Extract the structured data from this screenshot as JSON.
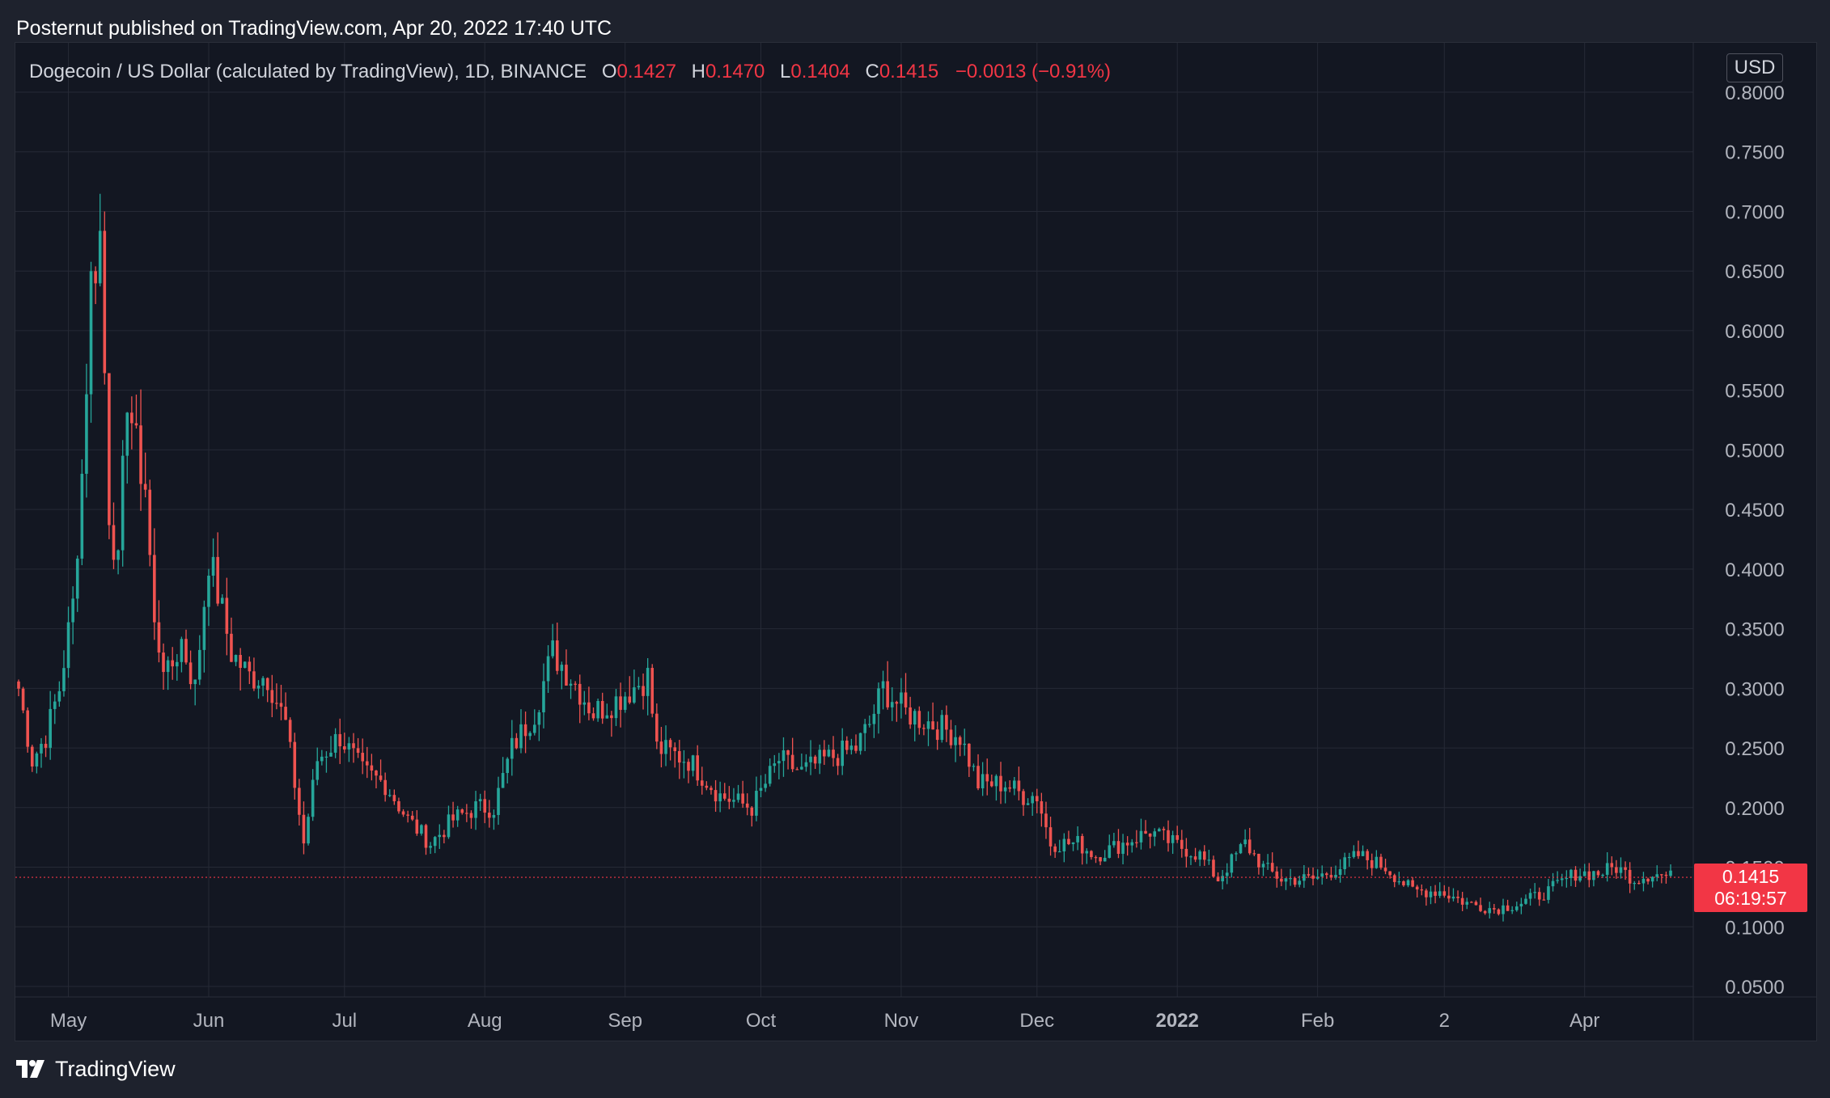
{
  "header": {
    "title": "Posternut published on TradingView.com, Apr 20, 2022 17:40 UTC"
  },
  "legend": {
    "symbol": "Dogecoin / US Dollar (calculated by TradingView), 1D, BINANCE",
    "o_label": "O",
    "o_value": "0.1427",
    "h_label": "H",
    "h_value": "0.1470",
    "l_label": "L",
    "l_value": "0.1404",
    "c_label": "C",
    "c_value": "0.1415",
    "change": "−0.0013 (−0.91%)"
  },
  "currency_button": "USD",
  "last_price": {
    "price": "0.1415",
    "countdown": "06:19:57"
  },
  "footer": {
    "brand": "TradingView",
    "logo_icon": "tradingview-logo-icon"
  },
  "colors": {
    "up": "#26a69a",
    "down": "#ef5350",
    "background": "#131722",
    "grid": "#262a36",
    "axis_text": "#b2b5be",
    "last_price": "#f23645"
  },
  "chart_data": {
    "type": "candlestick",
    "title": "",
    "xlabel": "",
    "ylabel": "",
    "ylim": [
      0.05,
      0.8
    ],
    "y_ticks": [
      "0.8000",
      "0.7500",
      "0.7000",
      "0.6500",
      "0.6000",
      "0.5500",
      "0.5000",
      "0.4500",
      "0.4000",
      "0.3500",
      "0.3000",
      "0.2500",
      "0.2000",
      "0.1500",
      "0.1000",
      "0.0500"
    ],
    "x_tick_labels": [
      {
        "label": "May",
        "date": "2021-05-01",
        "bold": false
      },
      {
        "label": "Jun",
        "date": "2021-06-01",
        "bold": false
      },
      {
        "label": "Jul",
        "date": "2021-07-01",
        "bold": false
      },
      {
        "label": "Aug",
        "date": "2021-08-01",
        "bold": false
      },
      {
        "label": "Sep",
        "date": "2021-09-01",
        "bold": false
      },
      {
        "label": "Oct",
        "date": "2021-10-01",
        "bold": false
      },
      {
        "label": "Nov",
        "date": "2021-11-01",
        "bold": false
      },
      {
        "label": "Dec",
        "date": "2021-12-01",
        "bold": false
      },
      {
        "label": "2022",
        "date": "2022-01-01",
        "bold": true
      },
      {
        "label": "Feb",
        "date": "2022-02-01",
        "bold": false
      },
      {
        "label": "2",
        "date": "2022-03-01",
        "bold": false
      },
      {
        "label": "Apr",
        "date": "2022-04-01",
        "bold": false
      }
    ],
    "x_range": [
      "2021-04-20",
      "2022-04-20"
    ],
    "last_price": 0.1415,
    "grid": true,
    "path_points": [
      [
        "2021-04-20",
        0.3
      ],
      [
        "2021-04-23",
        0.24
      ],
      [
        "2021-04-26",
        0.26
      ],
      [
        "2021-04-29",
        0.3
      ],
      [
        "2021-05-02",
        0.37
      ],
      [
        "2021-05-04",
        0.48
      ],
      [
        "2021-05-06",
        0.64
      ],
      [
        "2021-05-08",
        0.68
      ],
      [
        "2021-05-10",
        0.45
      ],
      [
        "2021-05-12",
        0.4
      ],
      [
        "2021-05-14",
        0.55
      ],
      [
        "2021-05-16",
        0.5
      ],
      [
        "2021-05-18",
        0.47
      ],
      [
        "2021-05-20",
        0.35
      ],
      [
        "2021-05-23",
        0.31
      ],
      [
        "2021-05-26",
        0.34
      ],
      [
        "2021-05-29",
        0.3
      ],
      [
        "2021-06-01",
        0.41
      ],
      [
        "2021-06-03",
        0.38
      ],
      [
        "2021-06-06",
        0.33
      ],
      [
        "2021-06-10",
        0.31
      ],
      [
        "2021-06-14",
        0.31
      ],
      [
        "2021-06-18",
        0.27
      ],
      [
        "2021-06-22",
        0.17
      ],
      [
        "2021-06-25",
        0.24
      ],
      [
        "2021-06-30",
        0.26
      ],
      [
        "2021-07-05",
        0.23
      ],
      [
        "2021-07-10",
        0.22
      ],
      [
        "2021-07-15",
        0.19
      ],
      [
        "2021-07-20",
        0.17
      ],
      [
        "2021-07-25",
        0.19
      ],
      [
        "2021-07-30",
        0.2
      ],
      [
        "2021-08-03",
        0.2
      ],
      [
        "2021-08-07",
        0.25
      ],
      [
        "2021-08-12",
        0.28
      ],
      [
        "2021-08-16",
        0.33
      ],
      [
        "2021-08-20",
        0.31
      ],
      [
        "2021-08-25",
        0.28
      ],
      [
        "2021-08-30",
        0.29
      ],
      [
        "2021-09-06",
        0.31
      ],
      [
        "2021-09-08",
        0.25
      ],
      [
        "2021-09-15",
        0.24
      ],
      [
        "2021-09-22",
        0.21
      ],
      [
        "2021-09-29",
        0.2
      ],
      [
        "2021-10-05",
        0.24
      ],
      [
        "2021-10-10",
        0.23
      ],
      [
        "2021-10-15",
        0.24
      ],
      [
        "2021-10-22",
        0.25
      ],
      [
        "2021-10-25",
        0.27
      ],
      [
        "2021-10-28",
        0.3
      ],
      [
        "2021-11-02",
        0.28
      ],
      [
        "2021-11-08",
        0.27
      ],
      [
        "2021-11-14",
        0.26
      ],
      [
        "2021-11-18",
        0.22
      ],
      [
        "2021-11-24",
        0.22
      ],
      [
        "2021-11-28",
        0.21
      ],
      [
        "2021-12-01",
        0.21
      ],
      [
        "2021-12-04",
        0.17
      ],
      [
        "2021-12-10",
        0.17
      ],
      [
        "2021-12-14",
        0.16
      ],
      [
        "2021-12-20",
        0.17
      ],
      [
        "2021-12-26",
        0.18
      ],
      [
        "2021-12-31",
        0.17
      ],
      [
        "2022-01-06",
        0.16
      ],
      [
        "2022-01-10",
        0.14
      ],
      [
        "2022-01-16",
        0.17
      ],
      [
        "2022-01-20",
        0.15
      ],
      [
        "2022-01-24",
        0.14
      ],
      [
        "2022-01-31",
        0.14
      ],
      [
        "2022-02-06",
        0.15
      ],
      [
        "2022-02-10",
        0.16
      ],
      [
        "2022-02-16",
        0.15
      ],
      [
        "2022-02-22",
        0.13
      ],
      [
        "2022-02-28",
        0.13
      ],
      [
        "2022-03-06",
        0.12
      ],
      [
        "2022-03-12",
        0.115
      ],
      [
        "2022-03-18",
        0.12
      ],
      [
        "2022-03-24",
        0.13
      ],
      [
        "2022-03-30",
        0.145
      ],
      [
        "2022-04-04",
        0.145
      ],
      [
        "2022-04-08",
        0.15
      ],
      [
        "2022-04-12",
        0.14
      ],
      [
        "2022-04-16",
        0.145
      ],
      [
        "2022-04-20",
        0.1415
      ]
    ]
  }
}
